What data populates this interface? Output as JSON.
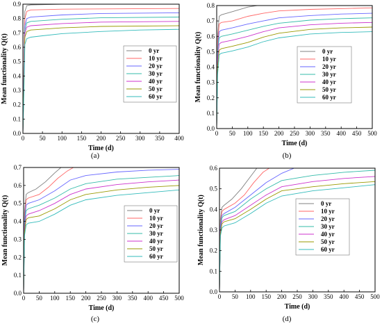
{
  "legend_labels": [
    "0 yr",
    "10 yr",
    "20 yr",
    "30 yr",
    "40 yr",
    "50 yr",
    "60 yr"
  ],
  "colors": [
    "#808080",
    "#ff6666",
    "#6666ff",
    "#33bbaa",
    "#cc33cc",
    "#999900",
    "#33bbbb"
  ],
  "chart_data": [
    {
      "type": "line",
      "panel_label": "(a)",
      "xlabel": "Time (d)",
      "ylabel": "Mean functionality Q(t)",
      "xlim": [
        0,
        400
      ],
      "ylim": [
        0.0,
        0.9
      ],
      "xticks": [
        "0",
        "50",
        "100",
        "150",
        "200",
        "250",
        "300",
        "350",
        "400"
      ],
      "yticks": [
        "0.0",
        "0.1",
        "0.2",
        "0.3",
        "0.4",
        "0.5",
        "0.6",
        "0.7",
        "0.8",
        "0.9"
      ],
      "legend_position": "center-right",
      "series": [
        {
          "name": "0 yr",
          "x": [
            0,
            3,
            5,
            10,
            20,
            100,
            400
          ],
          "y": [
            0.0,
            0.6,
            0.85,
            0.89,
            0.895,
            0.9,
            0.9
          ]
        },
        {
          "name": "10 yr",
          "x": [
            0,
            3,
            5,
            10,
            20,
            100,
            400
          ],
          "y": [
            0.0,
            0.55,
            0.8,
            0.85,
            0.86,
            0.865,
            0.87
          ]
        },
        {
          "name": "20 yr",
          "x": [
            0,
            3,
            5,
            10,
            20,
            100,
            200,
            400
          ],
          "y": [
            0.0,
            0.5,
            0.75,
            0.8,
            0.81,
            0.825,
            0.835,
            0.84
          ]
        },
        {
          "name": "30 yr",
          "x": [
            0,
            3,
            5,
            10,
            20,
            100,
            200,
            400
          ],
          "y": [
            0.0,
            0.45,
            0.72,
            0.77,
            0.78,
            0.795,
            0.805,
            0.81
          ]
        },
        {
          "name": "40 yr",
          "x": [
            0,
            3,
            5,
            10,
            20,
            100,
            200,
            400
          ],
          "y": [
            0.0,
            0.45,
            0.7,
            0.74,
            0.75,
            0.765,
            0.775,
            0.78
          ]
        },
        {
          "name": "50 yr",
          "x": [
            0,
            3,
            5,
            10,
            20,
            100,
            200,
            400
          ],
          "y": [
            0.0,
            0.4,
            0.67,
            0.71,
            0.72,
            0.735,
            0.745,
            0.75
          ]
        },
        {
          "name": "60 yr",
          "x": [
            0,
            3,
            5,
            10,
            20,
            50,
            100,
            200,
            300,
            400
          ],
          "y": [
            0.0,
            0.35,
            0.62,
            0.66,
            0.67,
            0.68,
            0.695,
            0.71,
            0.72,
            0.725
          ]
        }
      ]
    },
    {
      "type": "line",
      "panel_label": "(b)",
      "xlabel": "Time (d)",
      "ylabel": "Mean functionality Q(t)",
      "xlim": [
        0,
        500
      ],
      "ylim": [
        0.0,
        0.8
      ],
      "xticks": [
        "0",
        "50",
        "100",
        "150",
        "200",
        "250",
        "300",
        "350",
        "400",
        "450",
        "500"
      ],
      "yticks": [
        "0.0",
        "0.1",
        "0.2",
        "0.3",
        "0.4",
        "0.5",
        "0.6",
        "0.7",
        "0.8"
      ],
      "legend_position": "top-right",
      "series": [
        {
          "name": "0 yr",
          "x": [
            0,
            3,
            8,
            15,
            50,
            100,
            130,
            500
          ],
          "y": [
            0.0,
            0.6,
            0.73,
            0.74,
            0.76,
            0.79,
            0.8,
            0.8
          ]
        },
        {
          "name": "10 yr",
          "x": [
            0,
            3,
            8,
            15,
            50,
            100,
            150,
            200,
            300,
            400,
            500
          ],
          "y": [
            0.0,
            0.55,
            0.68,
            0.69,
            0.7,
            0.73,
            0.75,
            0.765,
            0.775,
            0.78,
            0.785
          ]
        },
        {
          "name": "20 yr",
          "x": [
            0,
            3,
            8,
            15,
            50,
            100,
            150,
            200,
            300,
            400,
            500
          ],
          "y": [
            0.0,
            0.5,
            0.63,
            0.64,
            0.655,
            0.68,
            0.7,
            0.72,
            0.735,
            0.745,
            0.75
          ]
        },
        {
          "name": "30 yr",
          "x": [
            0,
            3,
            8,
            15,
            50,
            100,
            150,
            200,
            300,
            400,
            500
          ],
          "y": [
            0.0,
            0.5,
            0.59,
            0.6,
            0.615,
            0.64,
            0.665,
            0.685,
            0.705,
            0.715,
            0.72
          ]
        },
        {
          "name": "40 yr",
          "x": [
            0,
            3,
            8,
            15,
            50,
            100,
            150,
            200,
            300,
            400,
            500
          ],
          "y": [
            0.0,
            0.45,
            0.55,
            0.56,
            0.575,
            0.6,
            0.63,
            0.655,
            0.675,
            0.685,
            0.69
          ]
        },
        {
          "name": "50 yr",
          "x": [
            0,
            3,
            8,
            15,
            50,
            100,
            150,
            200,
            300,
            400,
            500
          ],
          "y": [
            0.0,
            0.4,
            0.51,
            0.52,
            0.535,
            0.56,
            0.595,
            0.62,
            0.645,
            0.655,
            0.66
          ]
        },
        {
          "name": "60 yr",
          "x": [
            0,
            3,
            8,
            15,
            50,
            100,
            150,
            200,
            300,
            400,
            500
          ],
          "y": [
            0.0,
            0.35,
            0.48,
            0.49,
            0.505,
            0.53,
            0.565,
            0.59,
            0.615,
            0.625,
            0.63
          ]
        }
      ]
    },
    {
      "type": "line",
      "panel_label": "(c)",
      "xlabel": "Time (d)",
      "ylabel": "Mean functionality Q(t)",
      "xlim": [
        0,
        500
      ],
      "ylim": [
        0.0,
        0.7
      ],
      "xticks": [
        "0",
        "50",
        "100",
        "150",
        "200",
        "250",
        "300",
        "350",
        "400",
        "450",
        "500"
      ],
      "yticks": [
        "0.0",
        "0.1",
        "0.2",
        "0.3",
        "0.4",
        "0.5",
        "0.6",
        "0.7"
      ],
      "legend_position": "center-right",
      "series": [
        {
          "name": "0 yr",
          "x": [
            0,
            3,
            8,
            15,
            40,
            70,
            100,
            120,
            500
          ],
          "y": [
            0.0,
            0.45,
            0.55,
            0.56,
            0.58,
            0.62,
            0.67,
            0.7,
            0.7
          ]
        },
        {
          "name": "10 yr",
          "x": [
            0,
            3,
            8,
            15,
            50,
            80,
            110,
            140,
            160,
            500
          ],
          "y": [
            0.0,
            0.42,
            0.52,
            0.53,
            0.55,
            0.59,
            0.64,
            0.68,
            0.7,
            0.7
          ]
        },
        {
          "name": "20 yr",
          "x": [
            0,
            3,
            8,
            15,
            50,
            100,
            150,
            200,
            300,
            400,
            500
          ],
          "y": [
            0.0,
            0.4,
            0.49,
            0.5,
            0.52,
            0.57,
            0.63,
            0.655,
            0.675,
            0.685,
            0.69
          ]
        },
        {
          "name": "30 yr",
          "x": [
            0,
            3,
            8,
            15,
            50,
            100,
            150,
            200,
            300,
            400,
            500
          ],
          "y": [
            0.0,
            0.38,
            0.46,
            0.47,
            0.49,
            0.53,
            0.58,
            0.61,
            0.635,
            0.645,
            0.655
          ]
        },
        {
          "name": "40 yr",
          "x": [
            0,
            3,
            8,
            15,
            50,
            100,
            150,
            200,
            300,
            400,
            500
          ],
          "y": [
            0.0,
            0.36,
            0.43,
            0.44,
            0.46,
            0.5,
            0.55,
            0.58,
            0.605,
            0.62,
            0.63
          ]
        },
        {
          "name": "50 yr",
          "x": [
            0,
            3,
            8,
            15,
            50,
            100,
            150,
            200,
            300,
            400,
            500
          ],
          "y": [
            0.0,
            0.34,
            0.41,
            0.42,
            0.43,
            0.47,
            0.52,
            0.55,
            0.575,
            0.59,
            0.6
          ]
        },
        {
          "name": "60 yr",
          "x": [
            0,
            3,
            8,
            15,
            50,
            100,
            150,
            200,
            300,
            400,
            500
          ],
          "y": [
            0.0,
            0.32,
            0.38,
            0.39,
            0.4,
            0.44,
            0.49,
            0.52,
            0.545,
            0.56,
            0.575
          ]
        }
      ]
    },
    {
      "type": "line",
      "panel_label": "(d)",
      "xlabel": "Time (d)",
      "ylabel": "Mean functionality Q(t)",
      "xlim": [
        0,
        500
      ],
      "ylim": [
        0.0,
        0.6
      ],
      "xticks": [
        "0",
        "50",
        "100",
        "150",
        "200",
        "250",
        "300",
        "350",
        "400",
        "450",
        "500"
      ],
      "yticks": [
        "0.0",
        "0.1",
        "0.2",
        "0.3",
        "0.4",
        "0.5",
        "0.6"
      ],
      "legend_position": "center-right",
      "series": [
        {
          "name": "0 yr",
          "x": [
            0,
            3,
            8,
            15,
            40,
            70,
            100,
            120,
            500
          ],
          "y": [
            0.0,
            0.35,
            0.41,
            0.42,
            0.45,
            0.5,
            0.56,
            0.6,
            0.6
          ]
        },
        {
          "name": "10 yr",
          "x": [
            0,
            3,
            8,
            15,
            50,
            80,
            110,
            140,
            160,
            500
          ],
          "y": [
            0.0,
            0.33,
            0.39,
            0.4,
            0.43,
            0.47,
            0.53,
            0.58,
            0.6,
            0.6
          ]
        },
        {
          "name": "20 yr",
          "x": [
            0,
            3,
            8,
            15,
            50,
            100,
            150,
            200,
            240,
            500
          ],
          "y": [
            0.0,
            0.32,
            0.37,
            0.38,
            0.41,
            0.47,
            0.53,
            0.575,
            0.6,
            0.6
          ]
        },
        {
          "name": "30 yr",
          "x": [
            0,
            3,
            8,
            15,
            50,
            100,
            150,
            200,
            300,
            400,
            500
          ],
          "y": [
            0.0,
            0.3,
            0.36,
            0.37,
            0.39,
            0.45,
            0.5,
            0.54,
            0.565,
            0.58,
            0.59
          ]
        },
        {
          "name": "40 yr",
          "x": [
            0,
            3,
            8,
            15,
            50,
            100,
            150,
            200,
            300,
            400,
            500
          ],
          "y": [
            0.0,
            0.29,
            0.34,
            0.35,
            0.37,
            0.42,
            0.47,
            0.51,
            0.535,
            0.55,
            0.56
          ]
        },
        {
          "name": "50 yr",
          "x": [
            0,
            3,
            8,
            15,
            50,
            100,
            150,
            200,
            300,
            400,
            500
          ],
          "y": [
            0.0,
            0.28,
            0.33,
            0.34,
            0.355,
            0.4,
            0.45,
            0.49,
            0.51,
            0.525,
            0.535
          ]
        },
        {
          "name": "60 yr",
          "x": [
            0,
            3,
            8,
            15,
            50,
            100,
            150,
            200,
            300,
            400,
            500
          ],
          "y": [
            0.0,
            0.27,
            0.31,
            0.32,
            0.335,
            0.38,
            0.43,
            0.465,
            0.49,
            0.505,
            0.52
          ]
        }
      ]
    }
  ]
}
